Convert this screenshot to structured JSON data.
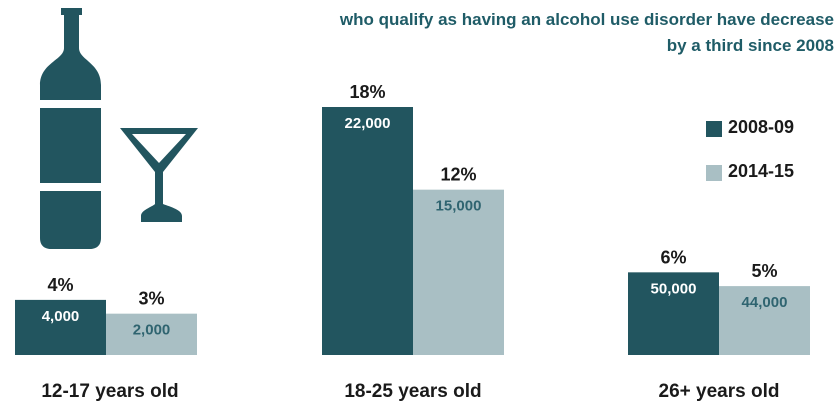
{
  "chart_data": {
    "type": "bar",
    "title": "who qualify as having an alcohol use disorder have decreased by a third since 2008",
    "title_lines": [
      "who qualify as having an alcohol use disorder have decrease",
      "by a third since 2008"
    ],
    "categories": [
      "12-17 years old",
      "18-25 years old",
      "26+ years old"
    ],
    "series": [
      {
        "name": "2008-09",
        "percent_labels": [
          "4%",
          "18%",
          "6%"
        ],
        "values": [
          4,
          18,
          6
        ],
        "count_labels": [
          "4,000",
          "22,000",
          "50,000"
        ],
        "color": "#22555f"
      },
      {
        "name": "2014-15",
        "percent_labels": [
          "3%",
          "12%",
          "5%"
        ],
        "values": [
          3,
          12,
          5
        ],
        "count_labels": [
          "2,000",
          "15,000",
          "44,000"
        ],
        "color": "#a9bfc4"
      }
    ],
    "ylim": [
      0,
      18
    ],
    "legend_position": "right",
    "grid": false
  },
  "colors": {
    "title": "#1f5c67",
    "illustration": "#22555f"
  },
  "icons": [
    "bottle-icon",
    "cocktail-glass-icon"
  ]
}
